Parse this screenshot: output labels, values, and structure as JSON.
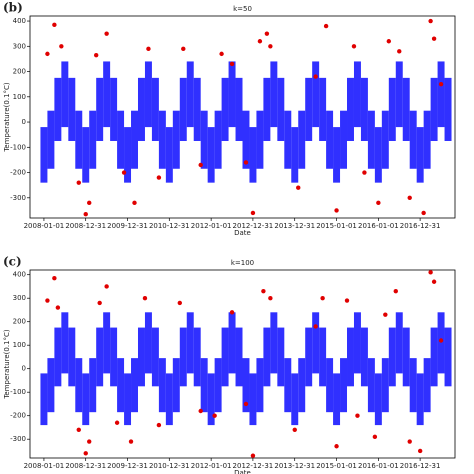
{
  "chart_data": [
    {
      "type": "scatter",
      "label": "(b)",
      "title": "k=50",
      "xlabel": "Date",
      "ylabel": "Temperature(0.1°C)",
      "xlim": [
        "2007-09",
        "2017-11"
      ],
      "ylim": [
        -380,
        420
      ],
      "yticks": [
        -300,
        -200,
        -100,
        0,
        100,
        200,
        300,
        400
      ],
      "xticks": [
        "2008-01-01",
        "2008-12-31",
        "2009-12-31",
        "2010-12-31",
        "2012-01-01",
        "2012-12-31",
        "2013-12-31",
        "2015-01-01",
        "2016-01-01",
        "2016-12-31"
      ],
      "x": [
        "2008-01",
        "2008-03",
        "2008-05",
        "2008-07",
        "2008-09",
        "2008-11",
        "2009-01",
        "2009-03",
        "2009-05",
        "2009-07",
        "2009-09",
        "2009-11",
        "2010-01",
        "2010-03",
        "2010-05",
        "2010-07",
        "2010-09",
        "2010-11",
        "2011-01",
        "2011-03",
        "2011-05",
        "2011-07",
        "2011-09",
        "2011-11",
        "2012-01",
        "2012-03",
        "2012-05",
        "2012-07",
        "2012-09",
        "2012-11",
        "2013-01",
        "2013-03",
        "2013-05",
        "2013-07",
        "2013-09",
        "2013-11",
        "2014-01",
        "2014-03",
        "2014-05",
        "2014-07",
        "2014-09",
        "2014-11",
        "2015-01",
        "2015-03",
        "2015-05",
        "2015-07",
        "2015-09",
        "2015-11",
        "2016-01",
        "2016-03",
        "2016-05",
        "2016-07",
        "2016-09",
        "2016-11",
        "2017-01",
        "2017-03",
        "2017-05",
        "2017-07",
        "2017-09"
      ],
      "series": [
        {
          "color": "#1a1aff",
          "values": [
            -20,
            45,
            175,
            240,
            175,
            45,
            -20,
            45,
            175,
            240,
            175,
            45,
            -20,
            45,
            175,
            240,
            175,
            45,
            -20,
            45,
            175,
            240,
            175,
            45,
            -20,
            45,
            175,
            240,
            175,
            45,
            -20,
            45,
            175,
            240,
            175,
            45,
            -20,
            45,
            175,
            240,
            175,
            45,
            -20,
            45,
            175,
            240,
            175,
            45,
            -20,
            45,
            175,
            240,
            175,
            45,
            -20,
            45,
            175,
            240,
            175
          ]
        },
        {
          "color": "#1a1aff",
          "values": [
            -240,
            -185,
            -75,
            -20,
            -75,
            -185,
            -240,
            -185,
            -75,
            -20,
            -75,
            -185,
            -240,
            -185,
            -75,
            -20,
            -75,
            -185,
            -240,
            -185,
            -75,
            -20,
            -75,
            -185,
            -240,
            -185,
            -75,
            -20,
            -75,
            -185,
            -240,
            -185,
            -75,
            -20,
            -75,
            -185,
            -240,
            -185,
            -75,
            -20,
            -75,
            -185,
            -240,
            -185,
            -75,
            -20,
            -75,
            -185,
            -240,
            -185,
            -75,
            -20,
            -75,
            -185,
            -240,
            -185,
            -75,
            -20,
            -75
          ]
        },
        {
          "color": "#e00000",
          "x": [
            "2008-02",
            "2008-04",
            "2008-06",
            "2008-11",
            "2009-01",
            "2009-02",
            "2009-04",
            "2009-07",
            "2009-12",
            "2010-03",
            "2010-07",
            "2010-10",
            "2011-05",
            "2011-10",
            "2012-04",
            "2012-07",
            "2012-11",
            "2013-01",
            "2013-03",
            "2013-05",
            "2013-06",
            "2014-02",
            "2014-07",
            "2014-10",
            "2015-01",
            "2015-06",
            "2015-09",
            "2016-01",
            "2016-04",
            "2016-07",
            "2016-10",
            "2017-02",
            "2017-04",
            "2017-05",
            "2017-07"
          ],
          "values": [
            270,
            385,
            300,
            -240,
            -365,
            -320,
            265,
            350,
            -200,
            -320,
            290,
            -220,
            290,
            -170,
            270,
            230,
            -160,
            -360,
            320,
            350,
            300,
            -260,
            180,
            380,
            -350,
            300,
            -200,
            -320,
            320,
            280,
            -300,
            -360,
            400,
            330,
            150
          ]
        }
      ]
    },
    {
      "type": "scatter",
      "label": "(c)",
      "title": "k=100",
      "xlabel": "Date",
      "ylabel": "Temperature(0.1°C)",
      "xlim": [
        "2007-09",
        "2017-11"
      ],
      "ylim": [
        -380,
        420
      ],
      "yticks": [
        -300,
        -200,
        -100,
        0,
        100,
        200,
        300,
        400
      ],
      "xticks": [
        "2008-01-01",
        "2008-12-31",
        "2009-12-31",
        "2010-12-31",
        "2012-01-01",
        "2012-12-31",
        "2013-12-31",
        "2015-01-01",
        "2016-01-01",
        "2016-12-31"
      ],
      "x": [
        "2008-01",
        "2008-03",
        "2008-05",
        "2008-07",
        "2008-09",
        "2008-11",
        "2009-01",
        "2009-03",
        "2009-05",
        "2009-07",
        "2009-09",
        "2009-11",
        "2010-01",
        "2010-03",
        "2010-05",
        "2010-07",
        "2010-09",
        "2010-11",
        "2011-01",
        "2011-03",
        "2011-05",
        "2011-07",
        "2011-09",
        "2011-11",
        "2012-01",
        "2012-03",
        "2012-05",
        "2012-07",
        "2012-09",
        "2012-11",
        "2013-01",
        "2013-03",
        "2013-05",
        "2013-07",
        "2013-09",
        "2013-11",
        "2014-01",
        "2014-03",
        "2014-05",
        "2014-07",
        "2014-09",
        "2014-11",
        "2015-01",
        "2015-03",
        "2015-05",
        "2015-07",
        "2015-09",
        "2015-11",
        "2016-01",
        "2016-03",
        "2016-05",
        "2016-07",
        "2016-09",
        "2016-11",
        "2017-01",
        "2017-03",
        "2017-05",
        "2017-07",
        "2017-09"
      ],
      "series": [
        {
          "color": "#1a1aff",
          "values": [
            -20,
            45,
            175,
            240,
            175,
            45,
            -20,
            45,
            175,
            240,
            175,
            45,
            -20,
            45,
            175,
            240,
            175,
            45,
            -20,
            45,
            175,
            240,
            175,
            45,
            -20,
            45,
            175,
            240,
            175,
            45,
            -20,
            45,
            175,
            240,
            175,
            45,
            -20,
            45,
            175,
            240,
            175,
            45,
            -20,
            45,
            175,
            240,
            175,
            45,
            -20,
            45,
            175,
            240,
            175,
            45,
            -20,
            45,
            175,
            240,
            175
          ]
        },
        {
          "color": "#1a1aff",
          "values": [
            -240,
            -185,
            -75,
            -20,
            -75,
            -185,
            -240,
            -185,
            -75,
            -20,
            -75,
            -185,
            -240,
            -185,
            -75,
            -20,
            -75,
            -185,
            -240,
            -185,
            -75,
            -20,
            -75,
            -185,
            -240,
            -185,
            -75,
            -20,
            -75,
            -185,
            -240,
            -185,
            -75,
            -20,
            -75,
            -185,
            -240,
            -185,
            -75,
            -20,
            -75,
            -185,
            -240,
            -185,
            -75,
            -20,
            -75,
            -185,
            -240,
            -185,
            -75,
            -20,
            -75,
            -185,
            -240,
            -185,
            -75,
            -20,
            -75
          ]
        },
        {
          "color": "#e00000",
          "x": [
            "2008-02",
            "2008-04",
            "2008-05",
            "2008-11",
            "2009-01",
            "2009-02",
            "2009-05",
            "2009-07",
            "2009-10",
            "2010-02",
            "2010-06",
            "2010-10",
            "2011-04",
            "2011-10",
            "2012-02",
            "2012-07",
            "2012-11",
            "2013-01",
            "2013-04",
            "2013-06",
            "2014-01",
            "2014-07",
            "2014-09",
            "2015-01",
            "2015-04",
            "2015-07",
            "2015-12",
            "2016-03",
            "2016-06",
            "2016-10",
            "2017-01",
            "2017-04",
            "2017-05",
            "2017-07"
          ],
          "values": [
            290,
            385,
            260,
            -260,
            -360,
            -310,
            280,
            350,
            -230,
            -310,
            300,
            -240,
            280,
            -180,
            -200,
            240,
            -150,
            -370,
            330,
            300,
            -260,
            180,
            300,
            -330,
            290,
            -200,
            -290,
            230,
            330,
            -310,
            -350,
            410,
            370,
            120
          ]
        }
      ]
    }
  ]
}
